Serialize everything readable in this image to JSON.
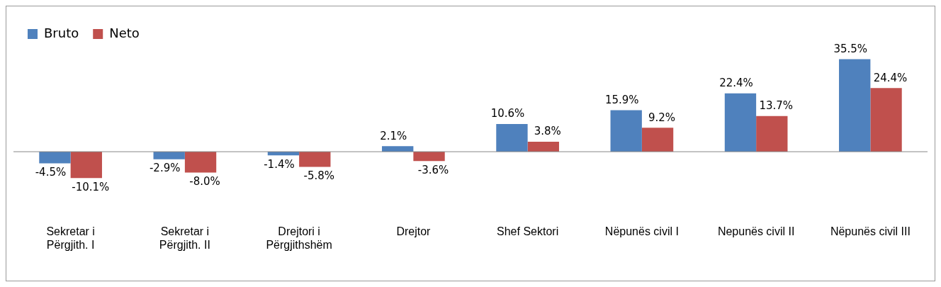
{
  "chart_data": {
    "type": "bar",
    "categories": [
      "Sekretar i\nPërgjith. I",
      "Sekretar i\nPërgjith. II",
      "Drejtori i\nPërgjithshëm",
      "Drejtor",
      "Shef Sektori",
      "Nëpunës civil I",
      "Nepunës civil II",
      "Nëpunës civil III"
    ],
    "series": [
      {
        "name": "Bruto",
        "color": "#4f81bd",
        "values": [
          -4.5,
          -2.9,
          -1.4,
          2.1,
          10.6,
          15.9,
          22.4,
          35.5
        ],
        "value_labels": [
          "-4.5%",
          "-2.9%",
          "-1.4%",
          "2.1%",
          "10.6%",
          "15.9%",
          "22.4%",
          "35.5%"
        ]
      },
      {
        "name": "Neto",
        "color": "#c0504d",
        "values": [
          -10.1,
          -8.0,
          -5.8,
          -3.6,
          3.8,
          9.2,
          13.7,
          24.4
        ],
        "value_labels": [
          "-10.1%",
          "-8.0%",
          "-5.8%",
          "-3.6%",
          "3.8%",
          "9.2%",
          "13.7%",
          "24.4%"
        ]
      }
    ],
    "legend": "top left",
    "grid": false
  }
}
